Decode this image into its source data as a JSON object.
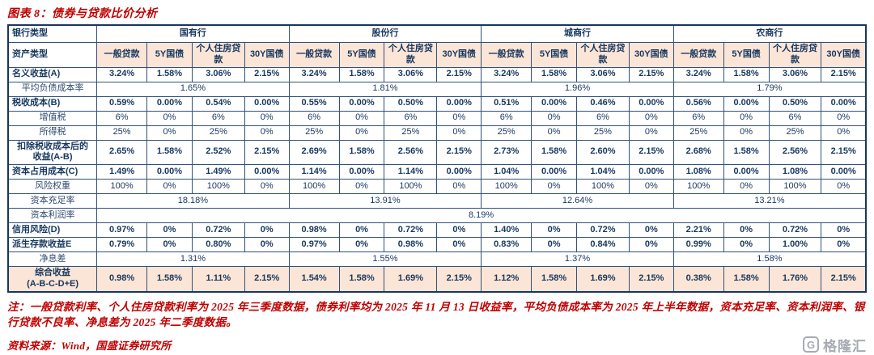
{
  "title": "图表 8：债券与贷款比价分析",
  "table": {
    "bank_type_label": "银行类型",
    "asset_type_label": "资产类型",
    "bank_groups": [
      "国有行",
      "股份行",
      "城商行",
      "农商行"
    ],
    "asset_columns": [
      "一般贷款",
      "5Y国债",
      "个人住房贷款",
      "30Y国债"
    ],
    "rows": [
      {
        "label": "名义收益(A)",
        "type": "data",
        "style": "main",
        "values": [
          [
            "3.24%",
            "1.58%",
            "3.06%",
            "2.15%"
          ],
          [
            "3.24%",
            "1.58%",
            "3.06%",
            "2.15%"
          ],
          [
            "3.24%",
            "1.58%",
            "3.06%",
            "2.15%"
          ],
          [
            "3.24%",
            "1.58%",
            "3.06%",
            "2.15%"
          ]
        ]
      },
      {
        "label": "平均负债成本率",
        "type": "group",
        "style": "sub",
        "values": [
          "1.65%",
          "1.81%",
          "1.96%",
          "1.79%"
        ]
      },
      {
        "label": "税收成本(B)",
        "type": "data",
        "style": "main",
        "values": [
          [
            "0.59%",
            "0.00%",
            "0.54%",
            "0.00%"
          ],
          [
            "0.55%",
            "0.00%",
            "0.50%",
            "0.00%"
          ],
          [
            "0.51%",
            "0.00%",
            "0.46%",
            "0.00%"
          ],
          [
            "0.56%",
            "0.00%",
            "0.50%",
            "0.00%"
          ]
        ]
      },
      {
        "label": "增值税",
        "type": "data",
        "style": "sub",
        "values": [
          [
            "6%",
            "0%",
            "6%",
            "0%"
          ],
          [
            "6%",
            "0%",
            "6%",
            "0%"
          ],
          [
            "6%",
            "0%",
            "6%",
            "0%"
          ],
          [
            "6%",
            "0%",
            "6%",
            "0%"
          ]
        ]
      },
      {
        "label": "所得税",
        "type": "data",
        "style": "sub",
        "values": [
          [
            "25%",
            "0%",
            "25%",
            "0%"
          ],
          [
            "25%",
            "0%",
            "25%",
            "0%"
          ],
          [
            "25%",
            "0%",
            "25%",
            "0%"
          ],
          [
            "25%",
            "0%",
            "25%",
            "0%"
          ]
        ]
      },
      {
        "label": "扣除税收成本后的\n收益(A-B)",
        "type": "data",
        "style": "main",
        "align": "center",
        "values": [
          [
            "2.65%",
            "1.58%",
            "2.52%",
            "2.15%"
          ],
          [
            "2.69%",
            "1.58%",
            "2.56%",
            "2.15%"
          ],
          [
            "2.73%",
            "1.58%",
            "2.60%",
            "2.15%"
          ],
          [
            "2.68%",
            "1.58%",
            "2.56%",
            "2.15%"
          ]
        ]
      },
      {
        "label": "资本占用成本(C)",
        "type": "data",
        "style": "main",
        "values": [
          [
            "1.49%",
            "0.00%",
            "1.49%",
            "0.00%"
          ],
          [
            "1.14%",
            "0.00%",
            "1.14%",
            "0.00%"
          ],
          [
            "1.04%",
            "0.00%",
            "1.04%",
            "0.00%"
          ],
          [
            "1.08%",
            "0.00%",
            "1.08%",
            "0.00%"
          ]
        ]
      },
      {
        "label": "风险权重",
        "type": "data",
        "style": "sub",
        "values": [
          [
            "100%",
            "0%",
            "100%",
            "0%"
          ],
          [
            "100%",
            "0%",
            "100%",
            "0%"
          ],
          [
            "100%",
            "0%",
            "100%",
            "0%"
          ],
          [
            "100%",
            "0%",
            "100%",
            "0%"
          ]
        ]
      },
      {
        "label": "资本充足率",
        "type": "group",
        "style": "sub",
        "values": [
          "18.18%",
          "13.91%",
          "12.64%",
          "13.21%"
        ]
      },
      {
        "label": "资本利润率",
        "type": "all",
        "style": "sub",
        "value": "8.19%"
      },
      {
        "label": "信用风险(D)",
        "type": "data",
        "style": "main",
        "values": [
          [
            "0.97%",
            "0%",
            "0.72%",
            "0%"
          ],
          [
            "0.98%",
            "0%",
            "0.72%",
            "0%"
          ],
          [
            "1.40%",
            "0%",
            "0.72%",
            "0%"
          ],
          [
            "2.21%",
            "0%",
            "0.72%",
            "0%"
          ]
        ]
      },
      {
        "label": "派生存款收益E",
        "type": "data",
        "style": "main",
        "values": [
          [
            "0.79%",
            "0%",
            "0.80%",
            "0%"
          ],
          [
            "0.97%",
            "0%",
            "0.98%",
            "0%"
          ],
          [
            "0.83%",
            "0%",
            "0.84%",
            "0%"
          ],
          [
            "0.99%",
            "0%",
            "1.00%",
            "0%"
          ]
        ]
      },
      {
        "label": "净息差",
        "type": "group",
        "style": "sub",
        "values": [
          "1.31%",
          "1.55%",
          "1.37%",
          "1.58%"
        ]
      },
      {
        "label": "综合收益\n(A-B-C-D+E)",
        "type": "data",
        "style": "main",
        "align": "center",
        "highlight": true,
        "values": [
          [
            "0.98%",
            "1.58%",
            "1.11%",
            "2.15%"
          ],
          [
            "1.54%",
            "1.58%",
            "1.69%",
            "2.15%"
          ],
          [
            "1.12%",
            "1.58%",
            "1.69%",
            "2.15%"
          ],
          [
            "0.38%",
            "1.58%",
            "1.76%",
            "2.15%"
          ]
        ]
      }
    ]
  },
  "note": "注：一般贷款利率、个人住房贷款利率为 2025 年三季度数据，债券利率均为 2025 年 11 月 13 日收益率，平均负债成本率为 2025 年上半年数据，资本充足率、资本利润率、银行贷款不良率、净息差为 2025 年二季度数据。",
  "source": "资料来源：Wind，国盛证券研究所",
  "watermark": {
    "icon_letter": "G",
    "text": "格隆汇"
  },
  "colors": {
    "accent_red": "#C00000",
    "table_navy": "#17375E",
    "highlight_peach": "#FBE5D6"
  }
}
